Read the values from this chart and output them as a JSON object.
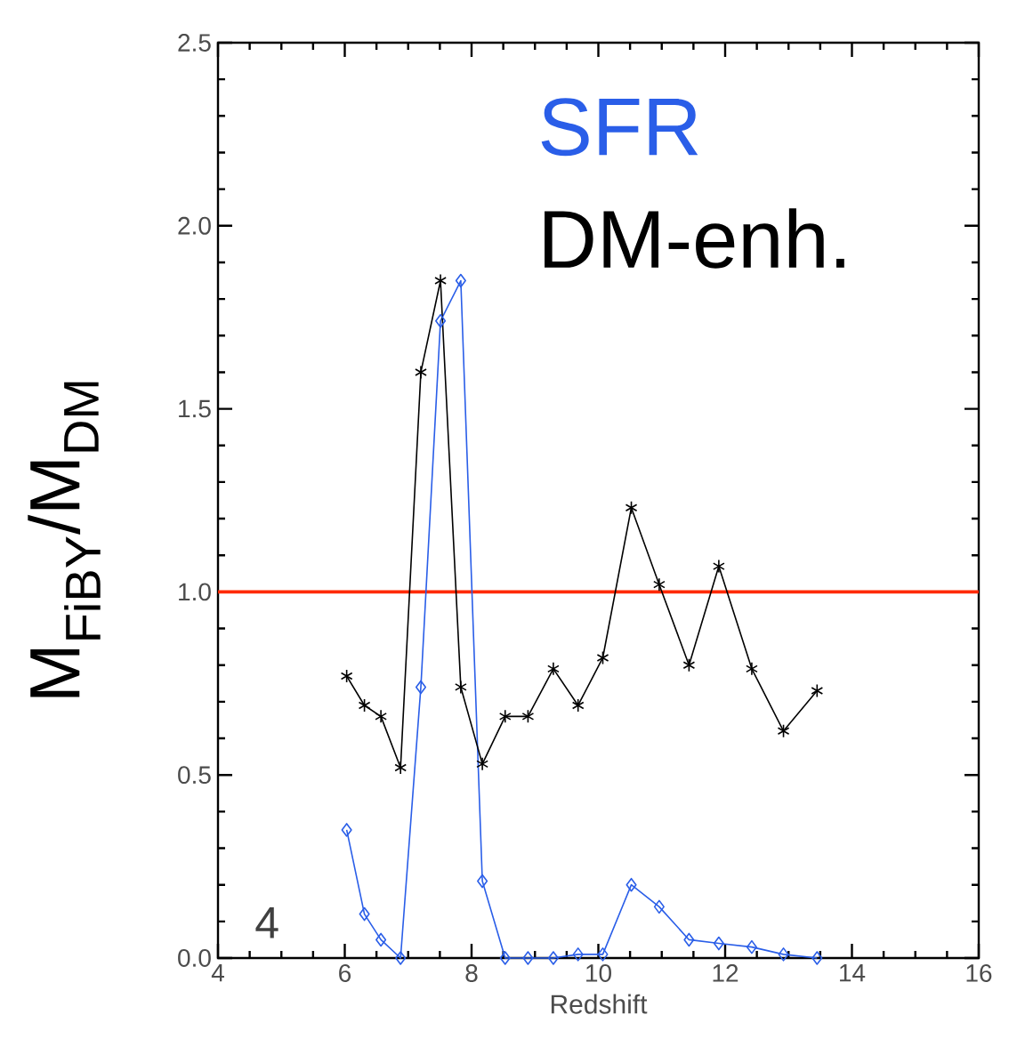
{
  "chart_data": {
    "type": "line",
    "xlabel": "Redshift",
    "ylabel": "M$_{FiBY}$/M$_{DM}$",
    "xlim": [
      4,
      16
    ],
    "ylim": [
      0,
      2.5
    ],
    "xticks": [
      4,
      6,
      8,
      10,
      12,
      14,
      16
    ],
    "yticks": [
      {
        "value": 0,
        "label": "0.0"
      },
      {
        "value": 0.5,
        "label": "0.5"
      },
      {
        "value": 1,
        "label": "1.0"
      },
      {
        "value": 1.5,
        "label": "1.5"
      },
      {
        "value": 2,
        "label": "2.0"
      },
      {
        "value": 2.5,
        "label": "2.5"
      }
    ],
    "x": [
      6.03,
      6.31,
      6.57,
      6.88,
      7.2,
      7.51,
      7.83,
      8.17,
      8.53,
      8.89,
      9.29,
      9.68,
      10.07,
      10.52,
      10.96,
      11.43,
      11.9,
      12.42,
      12.92,
      13.45
    ],
    "series": [
      {
        "name": "SFR",
        "color": "#2a5ee8",
        "marker": "diamond",
        "values": [
          0.35,
          0.12,
          0.05,
          0.0,
          0.74,
          1.74,
          1.85,
          0.21,
          0.0,
          0.0,
          0.0,
          0.01,
          0.01,
          0.2,
          0.14,
          0.05,
          0.04,
          0.03,
          0.01,
          0.0
        ]
      },
      {
        "name": "DM-enh.",
        "color": "#000000",
        "marker": "cross",
        "values": [
          0.77,
          0.69,
          0.66,
          0.52,
          1.6,
          1.85,
          0.74,
          0.53,
          0.66,
          0.66,
          0.79,
          0.69,
          0.82,
          1.23,
          1.02,
          0.8,
          1.07,
          0.79,
          0.62,
          0.73
        ]
      }
    ],
    "ref_lines": [
      {
        "axis": "y",
        "value": 1,
        "color": "#ff2a00"
      }
    ],
    "annotations": [
      "4"
    ],
    "legend": "top right",
    "grid": false
  }
}
